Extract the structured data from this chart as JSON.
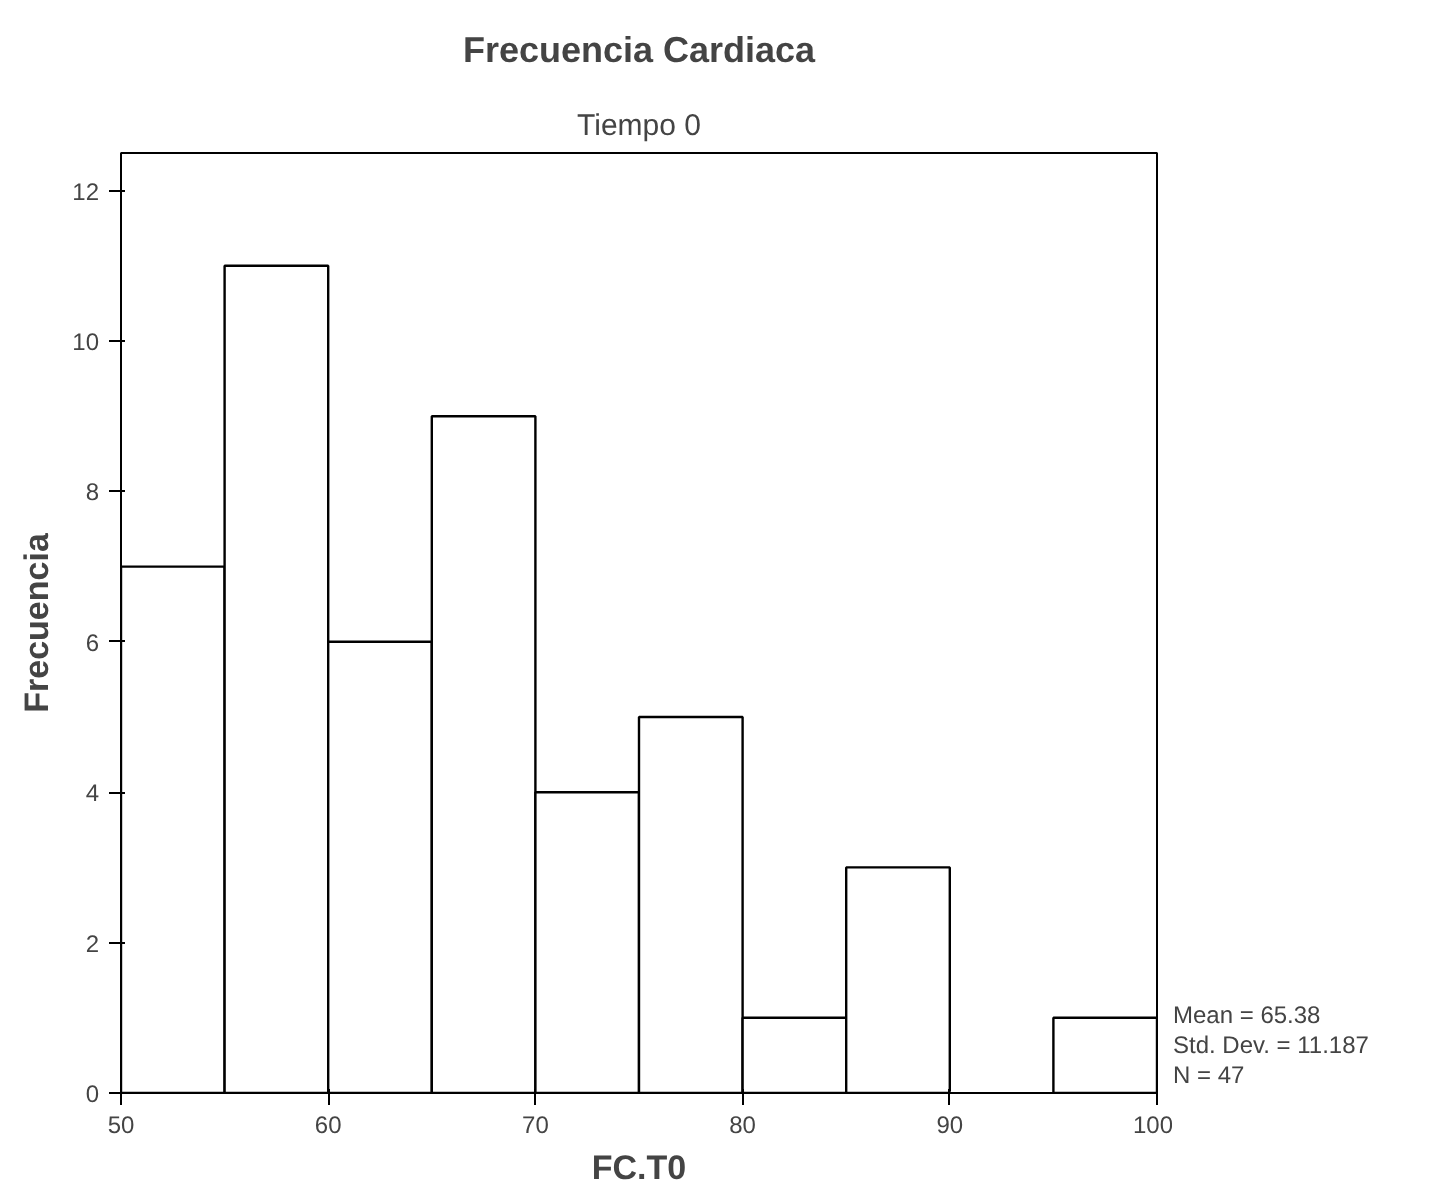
{
  "chart_data": {
    "type": "histogram",
    "title": "Frecuencia Cardiaca",
    "subtitle": "Tiempo 0",
    "xlabel": "FC.T0",
    "ylabel": "Frecuencia",
    "bins": [
      50,
      55,
      60,
      65,
      70,
      75,
      80,
      85,
      90,
      95,
      100
    ],
    "values": [
      7,
      11,
      6,
      9,
      4,
      5,
      1,
      3,
      0,
      1
    ],
    "color": "#ffffff",
    "xlim": [
      50,
      100
    ],
    "xticks": [
      50,
      60,
      70,
      80,
      90,
      100
    ],
    "ylim": [
      0,
      12.5
    ],
    "yticks": [
      0,
      2,
      4,
      6,
      8,
      10,
      12
    ],
    "grid": false,
    "annotations": [
      "Mean = 65.38",
      "Std. Dev. = 11.187",
      "N = 47"
    ]
  }
}
